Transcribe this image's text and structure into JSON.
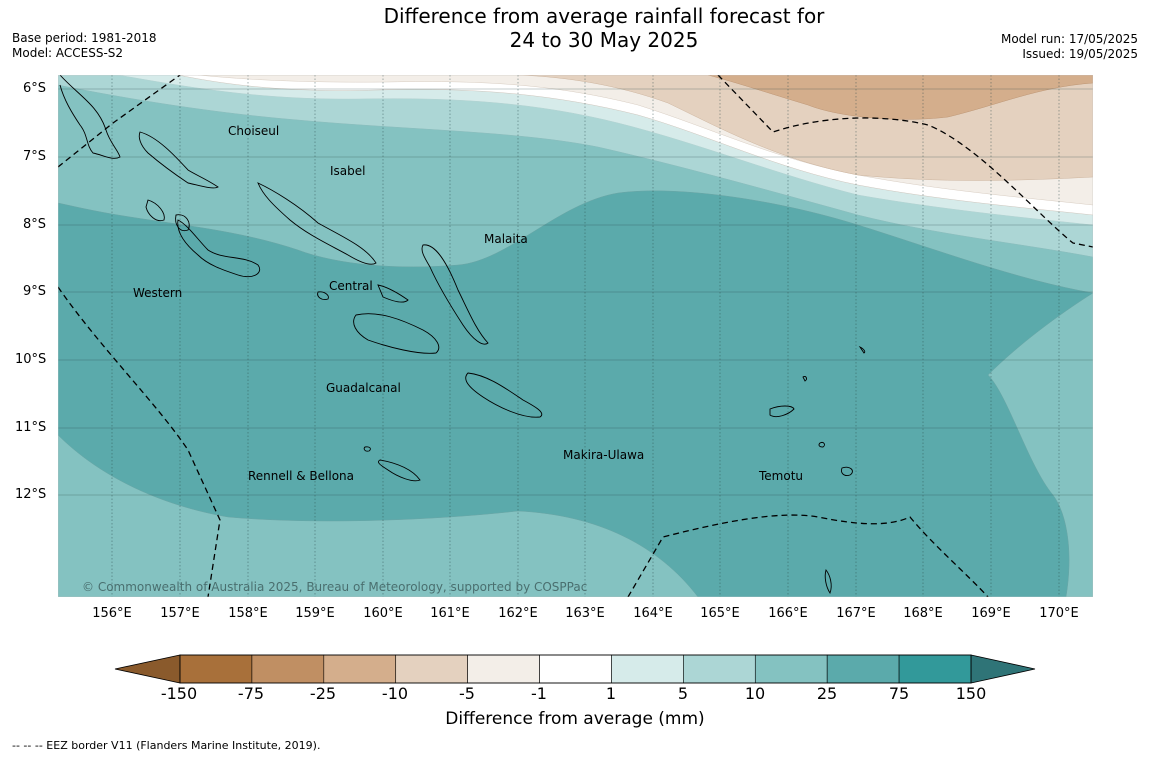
{
  "title_line1": "Difference from average rainfall forecast for",
  "title_line2": "24 to 30 May 2025",
  "base_period": "Base period: 1981-2018",
  "model": "Model: ACCESS-S2",
  "model_run": "Model run: 17/05/2025",
  "issued": "Issued: 19/05/2025",
  "credit": "© Commonwealth of Australia 2025, Bureau of Meteorology, supported by COSPPac",
  "colorbar_title": "Difference from average (mm)",
  "eez_note": "--  --  -- EEZ border V11 (Flanders Marine Institute, 2019).",
  "lat_labels": [
    "6°S",
    "7°S",
    "8°S",
    "9°S",
    "10°S",
    "11°S",
    "12°S"
  ],
  "lon_labels": [
    "156°E",
    "157°E",
    "158°E",
    "159°E",
    "160°E",
    "161°E",
    "162°E",
    "163°E",
    "164°E",
    "165°E",
    "166°E",
    "167°E",
    "168°E",
    "169°E",
    "170°E"
  ],
  "colorbar_ticks": [
    "-150",
    "-75",
    "-25",
    "-10",
    "-5",
    "-1",
    "1",
    "5",
    "10",
    "25",
    "75",
    "150"
  ],
  "colorbar_colors": [
    "#a8703a",
    "#c08f63",
    "#d4ae8c",
    "#e4d1bf",
    "#f3eee8",
    "#ffffff",
    "#d6ebea",
    "#acd6d5",
    "#84c2c1",
    "#5baaab",
    "#32999a"
  ],
  "colorbar_under": "#8a5a2c",
  "colorbar_over": "#2f7477",
  "regions": {
    "choiseul": "Choiseul",
    "isabel": "Isabel",
    "malaita": "Malaita",
    "western": "Western",
    "central": "Central",
    "guadalcanal": "Guadalcanal",
    "rennell_bellona": "Rennell & Bellona",
    "makira_ulawa": "Makira-Ulawa",
    "temotu": "Temotu"
  }
}
